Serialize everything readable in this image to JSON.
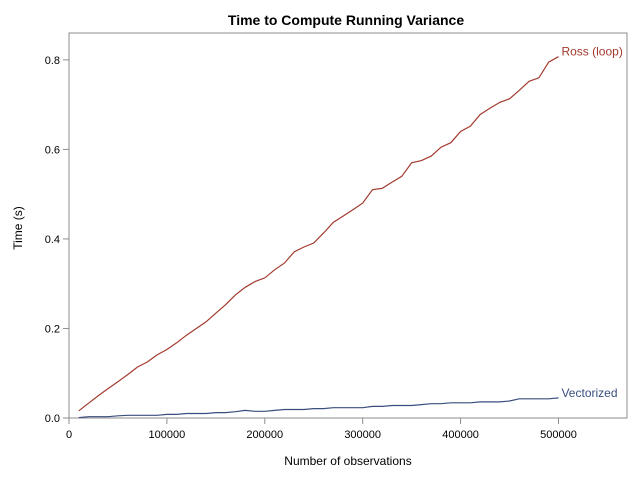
{
  "chart_data": {
    "type": "line",
    "title": "Time to Compute Running Variance",
    "xlabel": "Number of observations",
    "ylabel": "Time (s)",
    "xlim": [
      0,
      570000
    ],
    "ylim": [
      0,
      0.86
    ],
    "x_ticks": [
      0,
      100000,
      200000,
      300000,
      400000,
      500000
    ],
    "x_tick_labels": [
      "0",
      "100000",
      "200000",
      "300000",
      "400000",
      "500000"
    ],
    "y_ticks": [
      0.0,
      0.2,
      0.4,
      0.6,
      0.8
    ],
    "y_tick_labels": [
      "0.0",
      "0.2",
      "0.4",
      "0.6",
      "0.8"
    ],
    "grid": false,
    "legend": "inline labels at line ends",
    "series": [
      {
        "name": "Ross (loop)",
        "color": "#a23a2e",
        "x": [
          10000,
          20000,
          30000,
          40000,
          50000,
          60000,
          70000,
          80000,
          90000,
          100000,
          110000,
          120000,
          130000,
          140000,
          150000,
          160000,
          170000,
          180000,
          190000,
          200000,
          210000,
          220000,
          230000,
          240000,
          250000,
          260000,
          270000,
          280000,
          290000,
          300000,
          310000,
          320000,
          330000,
          340000,
          350000,
          360000,
          370000,
          380000,
          390000,
          400000,
          410000,
          420000,
          430000,
          440000,
          450000,
          460000,
          470000,
          480000,
          490000,
          500000
        ],
        "y": [
          0.016,
          0.033,
          0.05,
          0.066,
          0.081,
          0.097,
          0.114,
          0.125,
          0.141,
          0.153,
          0.168,
          0.185,
          0.2,
          0.215,
          0.234,
          0.253,
          0.275,
          0.292,
          0.305,
          0.313,
          0.331,
          0.346,
          0.371,
          0.382,
          0.391,
          0.413,
          0.437,
          0.451,
          0.465,
          0.48,
          0.51,
          0.513,
          0.527,
          0.54,
          0.57,
          0.575,
          0.585,
          0.605,
          0.615,
          0.64,
          0.652,
          0.678,
          0.692,
          0.705,
          0.713,
          0.732,
          0.752,
          0.76,
          0.795,
          0.807
        ]
      },
      {
        "name": "Vectorized",
        "color": "#3a4f7e",
        "x": [
          10000,
          20000,
          30000,
          40000,
          50000,
          60000,
          70000,
          80000,
          90000,
          100000,
          110000,
          120000,
          130000,
          140000,
          150000,
          160000,
          170000,
          180000,
          190000,
          200000,
          210000,
          220000,
          230000,
          240000,
          250000,
          260000,
          270000,
          280000,
          290000,
          300000,
          310000,
          320000,
          330000,
          340000,
          350000,
          360000,
          370000,
          380000,
          390000,
          400000,
          410000,
          420000,
          430000,
          440000,
          450000,
          460000,
          470000,
          480000,
          490000,
          500000
        ],
        "y": [
          0.001,
          0.003,
          0.003,
          0.003,
          0.005,
          0.006,
          0.006,
          0.006,
          0.006,
          0.008,
          0.008,
          0.01,
          0.01,
          0.01,
          0.012,
          0.012,
          0.014,
          0.017,
          0.015,
          0.015,
          0.017,
          0.019,
          0.019,
          0.019,
          0.021,
          0.021,
          0.023,
          0.023,
          0.023,
          0.023,
          0.026,
          0.026,
          0.028,
          0.028,
          0.028,
          0.03,
          0.032,
          0.032,
          0.034,
          0.034,
          0.034,
          0.036,
          0.036,
          0.036,
          0.038,
          0.043,
          0.043,
          0.043,
          0.043,
          0.045
        ]
      }
    ]
  }
}
